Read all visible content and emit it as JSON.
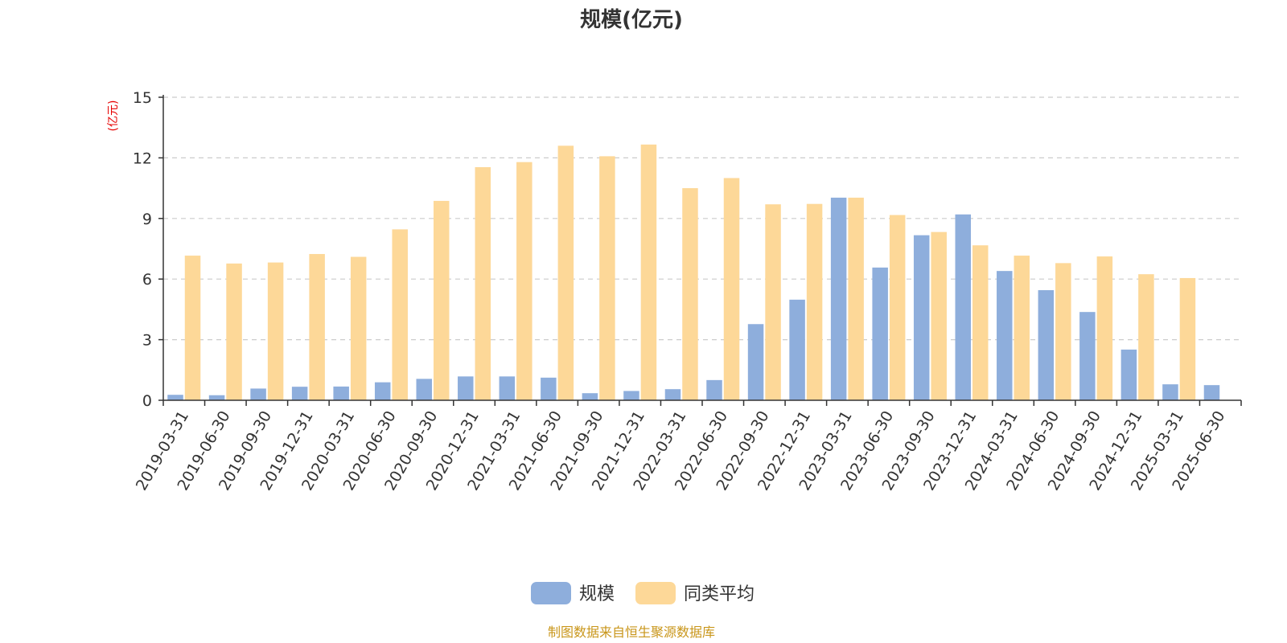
{
  "chart_data": {
    "type": "bar",
    "title": "规模(亿元)",
    "y_unit_label": "(亿元)",
    "ylim": [
      0,
      15
    ],
    "yticks": [
      "0",
      "3",
      "6",
      "9",
      "12",
      "15"
    ],
    "grid": true,
    "legend_position": "bottom-center",
    "categories": [
      "2019-03-31",
      "2019-06-30",
      "2019-09-30",
      "2019-12-31",
      "2020-03-31",
      "2020-06-30",
      "2020-09-30",
      "2020-12-31",
      "2021-03-31",
      "2021-06-30",
      "2021-09-30",
      "2021-12-31",
      "2022-03-31",
      "2022-06-30",
      "2022-09-30",
      "2022-12-31",
      "2023-03-31",
      "2023-06-30",
      "2023-09-30",
      "2023-12-31",
      "2024-03-31",
      "2024-06-30",
      "2024-09-30",
      "2024-12-31",
      "2025-03-31",
      "2025-06-30"
    ],
    "series": [
      {
        "name": "规模",
        "color": "#8eaedc",
        "values": [
          0.27,
          0.25,
          0.58,
          0.67,
          0.68,
          0.89,
          1.06,
          1.18,
          1.18,
          1.12,
          0.35,
          0.46,
          0.55,
          1.0,
          3.77,
          4.98,
          10.03,
          6.57,
          8.17,
          9.2,
          6.4,
          5.45,
          4.37,
          2.51,
          0.79,
          0.75
        ]
      },
      {
        "name": "同类平均",
        "color": "#fdd898",
        "values": [
          7.16,
          6.77,
          6.82,
          7.24,
          7.1,
          8.46,
          9.87,
          11.54,
          11.79,
          12.6,
          12.08,
          12.66,
          10.5,
          11.0,
          9.7,
          9.72,
          10.03,
          9.17,
          8.33,
          7.67,
          7.16,
          6.79,
          7.12,
          6.24,
          6.05,
          null
        ]
      }
    ]
  },
  "footer": {
    "source": "制图数据来自恒生聚源数据库"
  }
}
